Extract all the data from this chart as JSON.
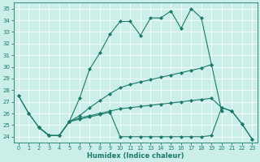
{
  "xlabel": "Humidex (Indice chaleur)",
  "bg_color": "#cceee8",
  "line_color": "#1a7a6a",
  "grid_color": "#ffffff",
  "xlim": [
    -0.5,
    23.5
  ],
  "ylim": [
    23.5,
    35.5
  ],
  "yticks": [
    24,
    25,
    26,
    27,
    28,
    29,
    30,
    31,
    32,
    33,
    34,
    35
  ],
  "xticks": [
    0,
    1,
    2,
    3,
    4,
    5,
    6,
    7,
    8,
    9,
    10,
    11,
    12,
    13,
    14,
    15,
    16,
    17,
    18,
    19,
    20,
    21,
    22,
    23
  ],
  "series": [
    [
      27.5,
      26.0,
      24.8,
      24.1,
      24.1,
      25.3,
      27.3,
      29.8,
      31.2,
      32.8,
      33.9,
      33.9,
      32.7,
      34.2,
      34.2,
      34.8,
      33.3,
      35.0,
      34.2,
      30.2,
      null,
      null,
      null,
      null
    ],
    [
      27.5,
      26.0,
      24.8,
      24.1,
      24.1,
      25.3,
      25.8,
      26.5,
      27.1,
      27.7,
      28.2,
      28.5,
      28.7,
      28.9,
      29.1,
      29.3,
      29.5,
      29.7,
      29.9,
      30.2,
      26.2,
      null,
      null,
      null
    ],
    [
      null,
      null,
      24.8,
      24.1,
      24.1,
      25.3,
      25.5,
      25.7,
      25.9,
      26.1,
      24.0,
      24.0,
      24.0,
      24.0,
      24.0,
      24.0,
      24.0,
      24.0,
      24.0,
      24.1,
      26.5,
      26.2,
      25.1,
      23.8
    ],
    [
      null,
      null,
      24.8,
      24.1,
      24.1,
      25.3,
      25.6,
      25.8,
      26.0,
      26.2,
      26.4,
      26.5,
      26.6,
      26.7,
      26.8,
      26.9,
      27.0,
      27.1,
      27.2,
      27.3,
      26.5,
      26.2,
      25.1,
      23.8
    ]
  ]
}
